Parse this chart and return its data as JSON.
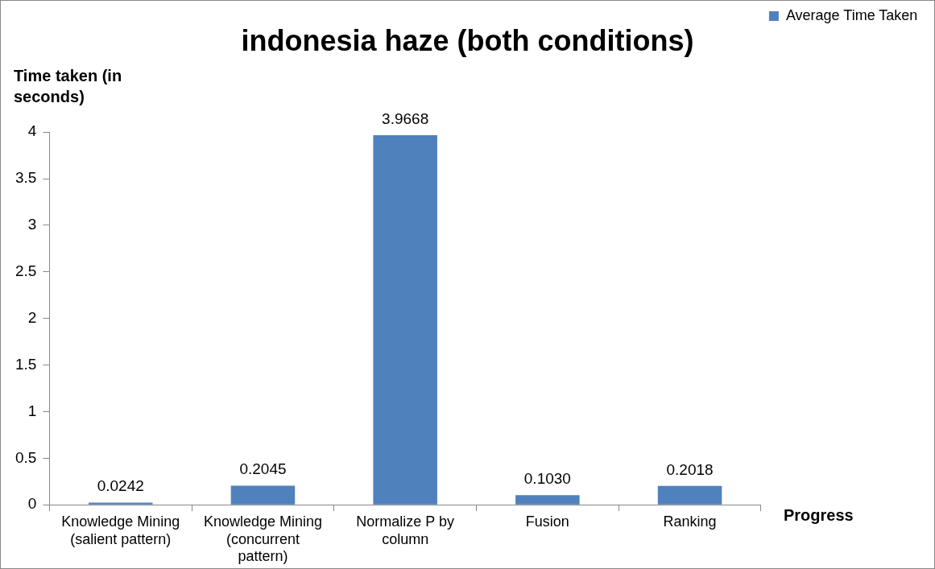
{
  "chart_data": {
    "type": "bar",
    "title": "indonesia haze (both conditions)",
    "xlabel": "Progress",
    "ylabel": "Time taken (in seconds)",
    "categories": [
      "Knowledge Mining (salient pattern)",
      "Knowledge Mining (concurrent pattern)",
      "Normalize P by column",
      "Fusion",
      "Ranking"
    ],
    "series": [
      {
        "name": "Average Time Taken",
        "color": "#4f81bd",
        "values": [
          0.0242,
          0.2045,
          3.9668,
          0.103,
          0.2018
        ],
        "value_labels": [
          "0.0242",
          "0.2045",
          "3.9668",
          "0.1030",
          "0.2018"
        ]
      }
    ],
    "ylim": [
      0,
      4
    ],
    "yticks": [
      0,
      0.5,
      1,
      1.5,
      2,
      2.5,
      3,
      3.5,
      4
    ],
    "grid": false,
    "legend": "right"
  }
}
